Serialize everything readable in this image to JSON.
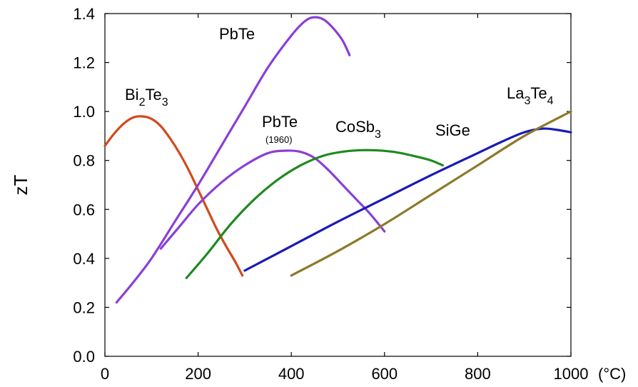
{
  "chart_data": {
    "type": "line",
    "ylabel": "zT",
    "xunit": "(°C)",
    "xlim": [
      0,
      1000
    ],
    "ylim": [
      0.0,
      1.4
    ],
    "xticks": [
      "0",
      "200",
      "400",
      "600",
      "800",
      "1000"
    ],
    "yticks": [
      "0.0",
      "0.2",
      "0.4",
      "0.6",
      "0.8",
      "1.0",
      "1.2",
      "1.4"
    ],
    "grid": false,
    "series": [
      {
        "name": "Bi2Te3",
        "label": "Bi2Te3",
        "color": "#d2491b",
        "points": [
          [
            0,
            0.86
          ],
          [
            20,
            0.91
          ],
          [
            40,
            0.95
          ],
          [
            60,
            0.975
          ],
          [
            80,
            0.98
          ],
          [
            100,
            0.97
          ],
          [
            120,
            0.94
          ],
          [
            140,
            0.89
          ],
          [
            160,
            0.83
          ],
          [
            180,
            0.76
          ],
          [
            200,
            0.68
          ],
          [
            220,
            0.6
          ],
          [
            240,
            0.52
          ],
          [
            260,
            0.45
          ],
          [
            280,
            0.385
          ],
          [
            295,
            0.33
          ]
        ]
      },
      {
        "name": "PbTe",
        "label": "PbTe",
        "color": "#8a3fd6",
        "points": [
          [
            25,
            0.22
          ],
          [
            60,
            0.3
          ],
          [
            100,
            0.4
          ],
          [
            150,
            0.55
          ],
          [
            200,
            0.7
          ],
          [
            250,
            0.86
          ],
          [
            300,
            1.02
          ],
          [
            350,
            1.18
          ],
          [
            400,
            1.31
          ],
          [
            430,
            1.37
          ],
          [
            450,
            1.385
          ],
          [
            470,
            1.375
          ],
          [
            490,
            1.34
          ],
          [
            510,
            1.29
          ],
          [
            525,
            1.23
          ]
        ]
      },
      {
        "name": "PbTe (1960)",
        "label": "PbTe",
        "sublabel": "(1960)",
        "color": "#8a3fd6",
        "points": [
          [
            120,
            0.44
          ],
          [
            160,
            0.53
          ],
          [
            200,
            0.62
          ],
          [
            250,
            0.71
          ],
          [
            300,
            0.78
          ],
          [
            350,
            0.83
          ],
          [
            390,
            0.84
          ],
          [
            420,
            0.835
          ],
          [
            450,
            0.81
          ],
          [
            480,
            0.76
          ],
          [
            510,
            0.7
          ],
          [
            540,
            0.64
          ],
          [
            570,
            0.58
          ],
          [
            600,
            0.51
          ]
        ]
      },
      {
        "name": "CoSb3",
        "label": "CoSb3",
        "color": "#1e8a1e",
        "points": [
          [
            175,
            0.32
          ],
          [
            220,
            0.42
          ],
          [
            270,
            0.54
          ],
          [
            320,
            0.64
          ],
          [
            370,
            0.72
          ],
          [
            420,
            0.78
          ],
          [
            470,
            0.82
          ],
          [
            520,
            0.838
          ],
          [
            570,
            0.842
          ],
          [
            620,
            0.835
          ],
          [
            670,
            0.815
          ],
          [
            700,
            0.8
          ],
          [
            725,
            0.78
          ]
        ]
      },
      {
        "name": "SiGe",
        "label": "SiGe",
        "color": "#1a1ab5",
        "points": [
          [
            300,
            0.35
          ],
          [
            400,
            0.45
          ],
          [
            500,
            0.55
          ],
          [
            600,
            0.645
          ],
          [
            700,
            0.74
          ],
          [
            800,
            0.83
          ],
          [
            850,
            0.875
          ],
          [
            900,
            0.915
          ],
          [
            940,
            0.93
          ],
          [
            970,
            0.925
          ],
          [
            1000,
            0.915
          ]
        ]
      },
      {
        "name": "La3Te4",
        "label": "La3Te4",
        "color": "#8c7a2a",
        "points": [
          [
            400,
            0.33
          ],
          [
            500,
            0.43
          ],
          [
            600,
            0.54
          ],
          [
            700,
            0.66
          ],
          [
            800,
            0.78
          ],
          [
            900,
            0.9
          ],
          [
            1000,
            1.0
          ]
        ]
      }
    ]
  }
}
